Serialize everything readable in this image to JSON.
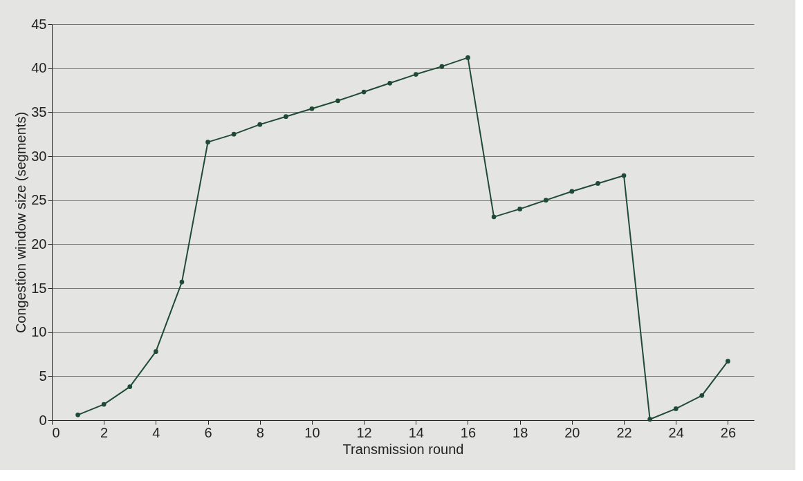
{
  "chart_data": {
    "type": "line",
    "xlabel": "Transmission round",
    "ylabel": "Congestion window size (segments)",
    "x": [
      1,
      2,
      3,
      4,
      5,
      6,
      7,
      8,
      9,
      10,
      11,
      12,
      13,
      14,
      15,
      16,
      17,
      18,
      19,
      20,
      21,
      22,
      23,
      24,
      25,
      26
    ],
    "series": [
      {
        "color": "#1f4a35",
        "values": [
          0.6,
          1.8,
          3.8,
          7.8,
          15.7,
          31.6,
          32.5,
          33.6,
          34.5,
          35.4,
          36.3,
          37.3,
          38.3,
          39.3,
          40.2,
          41.2,
          23.1,
          24.0,
          25.0,
          26.0,
          26.9,
          27.8,
          0.1,
          1.3,
          2.8,
          6.7
        ]
      }
    ],
    "xlim": [
      0,
      27
    ],
    "xticks": [
      0,
      2,
      4,
      6,
      8,
      10,
      12,
      14,
      16,
      18,
      20,
      22,
      24,
      26
    ],
    "ylim": [
      0,
      45
    ],
    "yticks": [
      0,
      5,
      10,
      15,
      20,
      25,
      30,
      35,
      40,
      45
    ],
    "grid": "y",
    "marker": "circle",
    "line_style": "solid"
  }
}
